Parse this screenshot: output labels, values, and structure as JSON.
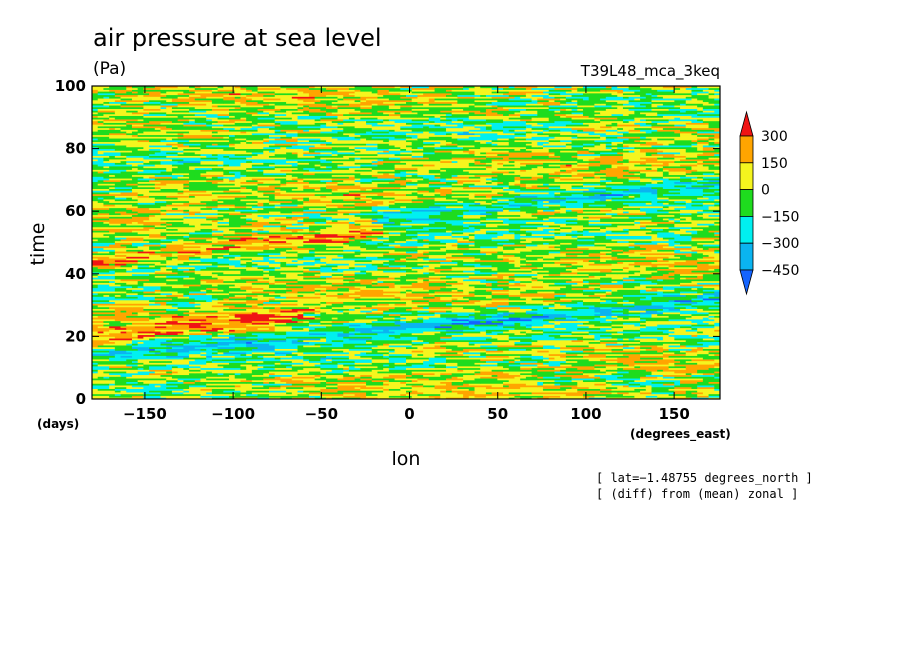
{
  "chart_data": {
    "type": "heatmap",
    "title": "air pressure at sea level",
    "units": "(Pa)",
    "experiment": "T39L48_mca_3keq",
    "xlabel": "lon",
    "x_unit": "(degrees_east)",
    "ylabel": "time",
    "y_unit": "(days)",
    "xlim": [
      -180,
      176
    ],
    "ylim": [
      0,
      100
    ],
    "x_ticks": [
      -150,
      -100,
      -50,
      0,
      50,
      100,
      150
    ],
    "x_tick_labels": [
      "−150",
      "−100",
      "−50",
      "0",
      "50",
      "100",
      "150"
    ],
    "y_ticks": [
      0,
      20,
      40,
      60,
      80,
      100
    ],
    "y_tick_labels": [
      "0",
      "20",
      "40",
      "60",
      "80",
      "100"
    ],
    "colorbar": {
      "levels": [
        -450,
        -300,
        -150,
        0,
        150,
        300
      ],
      "labels": [
        "300",
        "150",
        "0",
        "−150",
        "−300",
        "−450"
      ],
      "colors": [
        "#1464ff",
        "#0ab4f0",
        "#00f0f0",
        "#1edc1e",
        "#f5f51e",
        "#ffa500",
        "#f01414"
      ]
    },
    "annotations": [
      "[ lat=−1.48755 degrees_north ]",
      "[ (diff) from (mean) zonal ]"
    ],
    "dominant_features": [
      {
        "sign": "positive",
        "band_lon": [
          -180,
          -20
        ],
        "band_days": [
          44,
          54
        ]
      },
      {
        "sign": "negative",
        "band_lon": [
          -20,
          176
        ],
        "band_days": [
          58,
          70
        ]
      },
      {
        "sign": "negative",
        "band_lon": [
          -180,
          176
        ],
        "band_days": [
          14,
          32
        ]
      },
      {
        "sign": "positive",
        "band_lon": [
          -180,
          -60
        ],
        "band_days": [
          20,
          28
        ]
      }
    ]
  }
}
